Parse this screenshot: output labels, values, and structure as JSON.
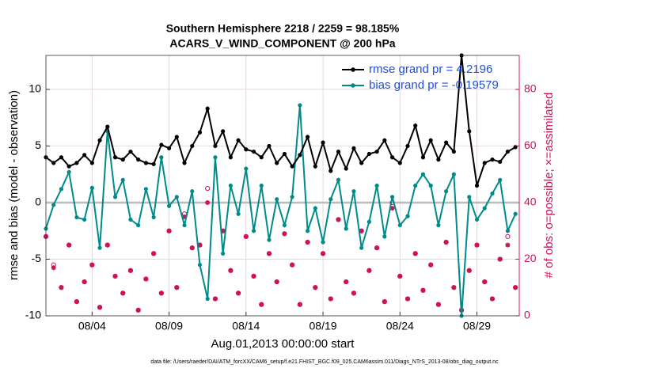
{
  "chart_data": {
    "type": "line",
    "title": [
      "Southern Hemisphere 2218 / 2259 = 98.185%",
      "ACARS_V_WIND_COMPONENT @ 200 hPa"
    ],
    "xlabel": "Aug.01,2013 00:00:00 start",
    "ylabel": "rmse and bias (model - observation)",
    "y2label": "# of obs: o=possible; ×=assimilated",
    "footnote": "data file: /Users/raeder/DAI/ATM_forcXX/CAM6_setup/f.e21.FHIST_BGC.f09_025.CAM6assim.011/Diags_NTrS_2013-08/obs_diag_output.nc",
    "x": [
      1,
      1.5,
      2,
      2.5,
      3,
      3.5,
      4,
      4.5,
      5,
      5.5,
      6,
      6.5,
      7,
      7.5,
      8,
      8.5,
      9,
      9.5,
      10,
      10.5,
      11,
      11.5,
      12,
      12.5,
      13,
      13.5,
      14,
      14.5,
      15,
      15.5,
      16,
      16.5,
      17,
      17.5,
      18,
      18.5,
      19,
      19.5,
      20,
      20.5,
      21,
      21.5,
      22,
      22.5,
      23,
      23.5,
      24,
      24.5,
      25,
      25.5,
      26,
      26.5,
      27,
      27.5,
      28,
      28.5,
      29,
      29.5,
      30,
      30.5,
      31,
      31.5
    ],
    "xlim": [
      1,
      31.75
    ],
    "xticks": [
      {
        "value": 4,
        "label": "08/04"
      },
      {
        "value": 9,
        "label": "08/09"
      },
      {
        "value": 14,
        "label": "08/14"
      },
      {
        "value": 19,
        "label": "08/19"
      },
      {
        "value": 24,
        "label": "08/24"
      },
      {
        "value": 29,
        "label": "08/29"
      }
    ],
    "ylim": [
      -10,
      13
    ],
    "yticks": [
      -10,
      -5,
      0,
      5,
      10
    ],
    "y2lim": [
      0,
      92
    ],
    "y2ticks": [
      0,
      20,
      40,
      60,
      80
    ],
    "y2color": "#d0105a",
    "grid": true,
    "legend": "upper right",
    "series": [
      {
        "name": "rmse grand pr = 4.2196",
        "color": "#000000",
        "marker": "dot",
        "values": [
          4,
          3.5,
          4,
          3.2,
          3.5,
          4.2,
          3.5,
          5.5,
          6.7,
          4,
          3.8,
          4.5,
          3.8,
          3.5,
          3.4,
          5.1,
          4.8,
          5.8,
          3.5,
          5,
          6.2,
          8.3,
          5,
          6.3,
          4,
          5.5,
          4.7,
          4.5,
          4,
          5,
          3.5,
          4.3,
          3.2,
          4.2,
          5.8,
          3.2,
          5.3,
          2.8,
          4.5,
          3,
          4.8,
          3.5,
          4.3,
          4.5,
          5.5,
          4,
          3.5,
          5,
          6.8,
          4,
          5.5,
          3.8,
          5.3,
          4.5,
          13,
          6.3,
          1.5,
          3.5,
          3.8,
          3.6,
          4.5,
          4.9
        ]
      },
      {
        "name": "bias grand pr = -0.19579",
        "color": "#008b8b",
        "marker": "dot",
        "values": [
          -2.3,
          -0.2,
          1.2,
          2.7,
          -1.3,
          -1.5,
          1.3,
          -4,
          6.3,
          0.5,
          2,
          -1.5,
          -2,
          1.2,
          -1.3,
          4,
          -0.3,
          0.5,
          -2,
          1,
          -5.5,
          -8.5,
          4,
          -4.5,
          1.5,
          -1,
          3,
          -2.5,
          1.5,
          -3.3,
          0.3,
          -2,
          0.5,
          8.6,
          -2.5,
          -0.5,
          -3.5,
          0.3,
          2,
          -2.3,
          1,
          -4,
          -1.7,
          1.5,
          -3,
          0.5,
          -2,
          -1.2,
          1.5,
          2.5,
          1.5,
          -2,
          1,
          2.5,
          -10,
          0.5,
          -1.5,
          -0.5,
          0.8,
          2,
          -2.5,
          -1
        ]
      },
      {
        "color": "#d0105a",
        "marker": "o",
        "axis": "y2",
        "values": [
          28,
          18,
          10,
          25,
          5,
          12,
          18,
          3,
          25,
          14,
          8,
          16,
          2,
          13,
          22,
          8,
          30,
          10,
          36,
          24,
          25,
          45,
          6,
          30,
          16,
          8,
          28,
          14,
          4,
          22,
          12,
          29,
          18,
          4,
          26,
          10,
          22,
          6,
          34,
          12,
          8,
          30,
          16,
          24,
          5,
          40,
          14,
          6,
          22,
          9,
          18,
          4,
          26,
          10,
          2,
          16,
          25,
          12,
          6,
          20,
          28,
          10
        ]
      },
      {
        "color": "#d0105a",
        "marker": "*",
        "axis": "y2",
        "values": [
          28,
          17,
          10,
          25,
          5,
          12,
          18,
          3,
          25,
          14,
          8,
          16,
          2,
          13,
          22,
          8,
          30,
          10,
          35,
          24,
          25,
          40,
          6,
          30,
          16,
          8,
          28,
          14,
          4,
          22,
          12,
          29,
          18,
          4,
          26,
          10,
          22,
          6,
          34,
          12,
          8,
          30,
          16,
          24,
          5,
          38,
          14,
          6,
          22,
          9,
          18,
          4,
          26,
          10,
          2,
          16,
          25,
          12,
          6,
          20,
          25,
          10
        ]
      }
    ]
  }
}
